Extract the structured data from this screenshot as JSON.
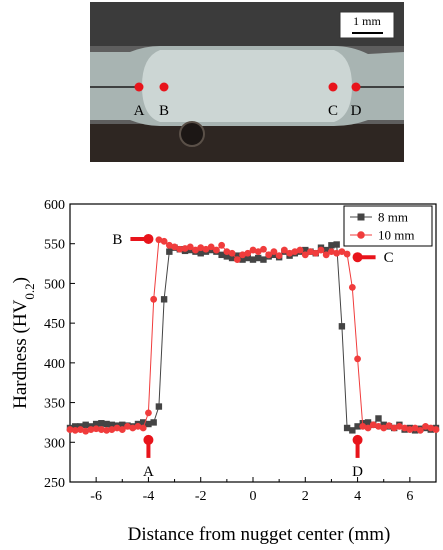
{
  "micrograph": {
    "scale_label": "1 mm",
    "points": [
      "A",
      "B",
      "C",
      "D"
    ],
    "colors": {
      "background": "#5e5e5e",
      "weld": "#b9c4c2",
      "point": "#e8141b",
      "dark": "#2e2622"
    }
  },
  "chart_data": {
    "type": "scatter",
    "xlabel": "Distance from nugget center (mm)",
    "ylabel_main": "Hardness (HV",
    "ylabel_sub": "0.2",
    "ylabel_close": ")",
    "xlim": [
      -7,
      7
    ],
    "ylim": [
      250,
      600
    ],
    "xticks": [
      -6,
      -4,
      -2,
      0,
      2,
      4,
      6
    ],
    "yticks": [
      250,
      300,
      350,
      400,
      450,
      500,
      550,
      600
    ],
    "xtick_labels": [
      "-6",
      "-4",
      "-2",
      "0",
      "2",
      "4",
      "6"
    ],
    "ytick_labels": [
      "250",
      "300",
      "350",
      "400",
      "450",
      "500",
      "550",
      "600"
    ],
    "legend_position": "top-right",
    "series": [
      {
        "name": "8 mm",
        "color": "#444444",
        "marker": "square",
        "points": [
          [
            -7.0,
            318
          ],
          [
            -6.8,
            320
          ],
          [
            -6.6,
            320
          ],
          [
            -6.4,
            322
          ],
          [
            -6.2,
            320
          ],
          [
            -6.0,
            323
          ],
          [
            -5.8,
            324
          ],
          [
            -5.6,
            323
          ],
          [
            -5.4,
            322
          ],
          [
            -5.2,
            321
          ],
          [
            -5.0,
            322
          ],
          [
            -4.8,
            321
          ],
          [
            -4.6,
            320
          ],
          [
            -4.4,
            323
          ],
          [
            -4.2,
            325
          ],
          [
            -4.0,
            323
          ],
          [
            -3.8,
            325
          ],
          [
            -3.6,
            345
          ],
          [
            -3.4,
            480
          ],
          [
            -3.2,
            540
          ],
          [
            -3.0,
            545
          ],
          [
            -2.8,
            543
          ],
          [
            -2.6,
            541
          ],
          [
            -2.4,
            542
          ],
          [
            -2.2,
            540
          ],
          [
            -2.0,
            538
          ],
          [
            -1.8,
            540
          ],
          [
            -1.6,
            542
          ],
          [
            -1.4,
            540
          ],
          [
            -1.2,
            536
          ],
          [
            -1.0,
            534
          ],
          [
            -0.8,
            532
          ],
          [
            -0.6,
            535
          ],
          [
            -0.4,
            530
          ],
          [
            -0.2,
            532
          ],
          [
            0.0,
            530
          ],
          [
            0.2,
            532
          ],
          [
            0.4,
            530
          ],
          [
            0.6,
            534
          ],
          [
            0.8,
            536
          ],
          [
            1.0,
            533
          ],
          [
            1.2,
            540
          ],
          [
            1.4,
            535
          ],
          [
            1.6,
            538
          ],
          [
            1.8,
            540
          ],
          [
            2.0,
            542
          ],
          [
            2.2,
            540
          ],
          [
            2.4,
            538
          ],
          [
            2.6,
            545
          ],
          [
            2.8,
            542
          ],
          [
            3.0,
            548
          ],
          [
            3.2,
            549
          ],
          [
            3.4,
            446
          ],
          [
            3.6,
            318
          ],
          [
            3.8,
            315
          ],
          [
            4.0,
            320
          ],
          [
            4.2,
            324
          ],
          [
            4.4,
            325
          ],
          [
            4.6,
            322
          ],
          [
            4.8,
            330
          ],
          [
            5.0,
            322
          ],
          [
            5.2,
            320
          ],
          [
            5.4,
            318
          ],
          [
            5.6,
            322
          ],
          [
            5.8,
            316
          ],
          [
            6.0,
            318
          ],
          [
            6.2,
            315
          ],
          [
            6.4,
            317
          ],
          [
            6.6,
            318
          ],
          [
            6.8,
            316
          ],
          [
            7.0,
            318
          ]
        ]
      },
      {
        "name": "10 mm",
        "color": "#f03c3c",
        "marker": "circle",
        "points": [
          [
            -7.0,
            316
          ],
          [
            -6.8,
            315
          ],
          [
            -6.6,
            316
          ],
          [
            -6.4,
            314
          ],
          [
            -6.2,
            316
          ],
          [
            -6.0,
            317
          ],
          [
            -5.8,
            316
          ],
          [
            -5.6,
            315
          ],
          [
            -5.4,
            316
          ],
          [
            -5.2,
            318
          ],
          [
            -5.0,
            316
          ],
          [
            -4.8,
            320
          ],
          [
            -4.6,
            318
          ],
          [
            -4.4,
            320
          ],
          [
            -4.2,
            318
          ],
          [
            -4.0,
            337
          ],
          [
            -3.8,
            480
          ],
          [
            -3.6,
            555
          ],
          [
            -3.4,
            553
          ],
          [
            -3.2,
            548
          ],
          [
            -3.0,
            546
          ],
          [
            -2.8,
            543
          ],
          [
            -2.6,
            544
          ],
          [
            -2.4,
            546
          ],
          [
            -2.2,
            542
          ],
          [
            -2.0,
            545
          ],
          [
            -1.8,
            543
          ],
          [
            -1.6,
            546
          ],
          [
            -1.4,
            542
          ],
          [
            -1.2,
            548
          ],
          [
            -1.0,
            540
          ],
          [
            -0.8,
            538
          ],
          [
            -0.6,
            530
          ],
          [
            -0.4,
            536
          ],
          [
            -0.2,
            538
          ],
          [
            0.0,
            542
          ],
          [
            0.2,
            540
          ],
          [
            0.4,
            543
          ],
          [
            0.6,
            536
          ],
          [
            0.8,
            540
          ],
          [
            1.0,
            535
          ],
          [
            1.2,
            542
          ],
          [
            1.4,
            538
          ],
          [
            1.6,
            540
          ],
          [
            1.8,
            542
          ],
          [
            2.0,
            536
          ],
          [
            2.2,
            540
          ],
          [
            2.4,
            538
          ],
          [
            2.6,
            542
          ],
          [
            2.8,
            536
          ],
          [
            3.0,
            540
          ],
          [
            3.2,
            538
          ],
          [
            3.4,
            540
          ],
          [
            3.6,
            537
          ],
          [
            3.8,
            495
          ],
          [
            4.0,
            405
          ],
          [
            4.2,
            320
          ],
          [
            4.4,
            318
          ],
          [
            4.6,
            322
          ],
          [
            4.8,
            320
          ],
          [
            5.0,
            318
          ],
          [
            5.2,
            321
          ],
          [
            5.4,
            318
          ],
          [
            5.6,
            320
          ],
          [
            5.8,
            318
          ],
          [
            6.0,
            316
          ],
          [
            6.2,
            318
          ],
          [
            6.4,
            315
          ],
          [
            6.6,
            320
          ],
          [
            6.8,
            318
          ],
          [
            7.0,
            316
          ]
        ]
      }
    ],
    "annotations": [
      {
        "label": "A",
        "x": -4.0,
        "y": 303,
        "arrow": "up"
      },
      {
        "label": "B",
        "x": -4.0,
        "y": 556,
        "arrow": "right"
      },
      {
        "label": "C",
        "x": 4.0,
        "y": 533,
        "arrow": "left"
      },
      {
        "label": "D",
        "x": 4.0,
        "y": 303,
        "arrow": "up"
      }
    ]
  }
}
